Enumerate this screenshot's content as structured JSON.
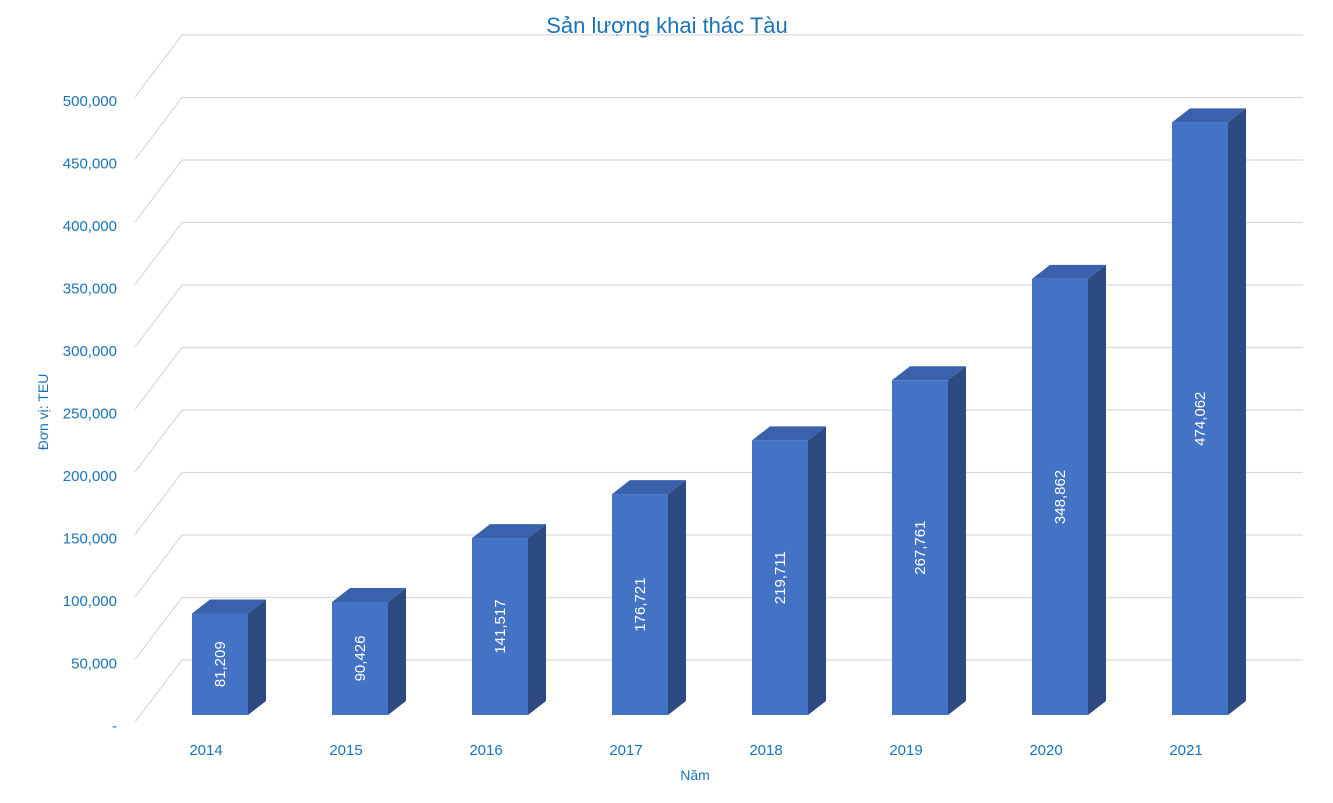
{
  "chart_data": {
    "type": "bar",
    "title": "Sản lượng khai thác Tàu",
    "xlabel": "Năm",
    "ylabel": "Đơn vị: TEU",
    "categories": [
      "2014",
      "2015",
      "2016",
      "2017",
      "2018",
      "2019",
      "2020",
      "2021"
    ],
    "values": [
      81209,
      90426,
      141517,
      176721,
      219711,
      267761,
      348862,
      474062
    ],
    "value_labels": [
      "81,209",
      "90,426",
      "141,517",
      "176,721",
      "219,711",
      "267,761",
      "348,862",
      "474,062"
    ],
    "ylim": [
      0,
      500000
    ],
    "yticks": [
      0,
      50000,
      100000,
      150000,
      200000,
      250000,
      300000,
      350000,
      400000,
      450000,
      500000
    ],
    "ytick_labels": [
      "-",
      "50,000",
      "100,000",
      "150,000",
      "200,000",
      "250,000",
      "300,000",
      "350,000",
      "400,000",
      "450,000",
      "500,000"
    ],
    "grid": true,
    "style": "3d-column",
    "colors": {
      "bar_front": "#4472c4",
      "bar_side": "#2d4a82",
      "bar_top": "#3a62ac",
      "text": "#1a73b8",
      "grid": "#d9d9d9"
    }
  }
}
